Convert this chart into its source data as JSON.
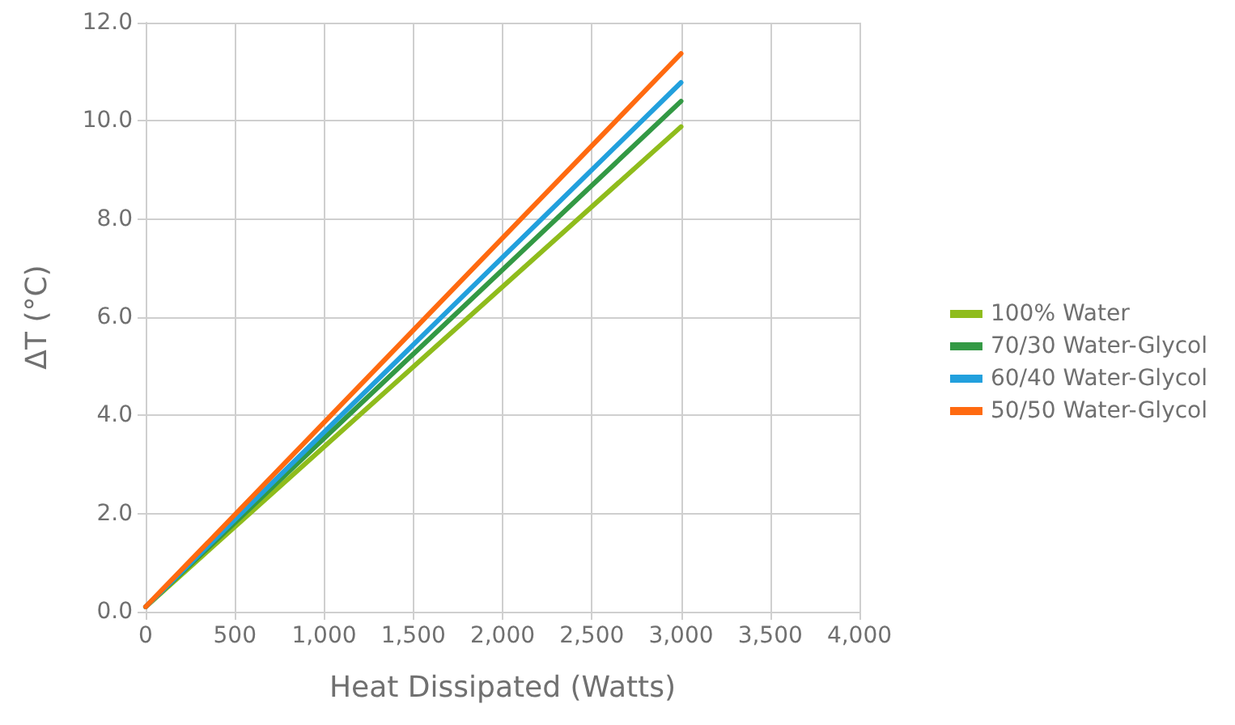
{
  "chart_data": {
    "type": "line",
    "xlabel": "Heat Dissipated (Watts)",
    "ylabel": "ΔT (°C)",
    "x": [
      0,
      3000
    ],
    "series": [
      {
        "name": "100% Water",
        "color": "#8fbc1c",
        "values": [
          0.1,
          9.88
        ]
      },
      {
        "name": "70/30 Water-Glycol",
        "color": "#339944",
        "values": [
          0.1,
          10.4
        ]
      },
      {
        "name": "60/40 Water-Glycol",
        "color": "#22a0dd",
        "values": [
          0.1,
          10.78
        ]
      },
      {
        "name": "50/50 Water-Glycol",
        "color": "#ff6a10",
        "values": [
          0.1,
          11.37
        ]
      }
    ],
    "xlim": [
      0,
      4000
    ],
    "xticks": [
      0,
      500,
      {
        "value": 1000,
        "label": "1,000"
      },
      {
        "value": 1500,
        "label": "1,500"
      },
      {
        "value": 2000,
        "label": "2,000"
      },
      {
        "value": 2500,
        "label": "2,500"
      },
      {
        "value": 3000,
        "label": "3,000"
      },
      {
        "value": 3500,
        "label": "3,500"
      },
      {
        "value": 4000,
        "label": "4,000"
      }
    ],
    "ylim": [
      0,
      12
    ],
    "yticks": [
      {
        "value": 0,
        "label": "0.0"
      },
      {
        "value": 2,
        "label": "2.0"
      },
      {
        "value": 4,
        "label": "4.0"
      },
      {
        "value": 6,
        "label": "6.0"
      },
      {
        "value": 8,
        "label": "8.0"
      },
      {
        "value": 10,
        "label": "10.0"
      },
      {
        "value": 12,
        "label": "12.0"
      }
    ],
    "grid": true,
    "legend": "right",
    "marker": "none",
    "line_style": "solid"
  }
}
